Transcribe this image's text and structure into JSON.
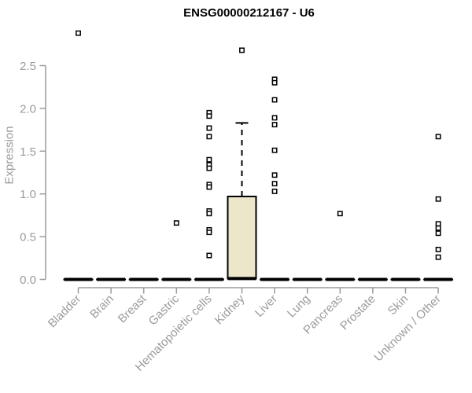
{
  "chart_data": {
    "type": "box",
    "title": "ENSG00000212167 - U6",
    "ylabel": "Expression",
    "xlabel": "",
    "grid": false,
    "ylim": [
      0,
      2.9
    ],
    "yticks": [
      0.0,
      0.5,
      1.0,
      1.5,
      2.0,
      2.5
    ],
    "ytick_labels": [
      "0.0",
      "0.5",
      "1.0",
      "1.5",
      "2.0",
      "2.5"
    ],
    "categories": [
      "Bladder",
      "Brain",
      "Breast",
      "Gastric",
      "Hematopoietic cells",
      "Kidney",
      "Liver",
      "Lung",
      "Pancreas",
      "Prostate",
      "Skin",
      "Unknown / Other"
    ],
    "colors": {
      "box_fill": "#ece7cb",
      "box_stroke": "#000000",
      "median": "#000000",
      "whisker": "#000000",
      "outlier": "#000000",
      "axis": "#9b9b9b",
      "tick_text": "#9b9b9b",
      "title_text": "#000000"
    },
    "series": [
      {
        "name": "Bladder",
        "box": {
          "q1": 0,
          "median": 0,
          "q3": 0,
          "whisker_low": 0,
          "whisker_high": 0
        },
        "outliers": [
          2.88
        ]
      },
      {
        "name": "Brain",
        "box": {
          "q1": 0,
          "median": 0,
          "q3": 0,
          "whisker_low": 0,
          "whisker_high": 0
        },
        "outliers": []
      },
      {
        "name": "Breast",
        "box": {
          "q1": 0,
          "median": 0,
          "q3": 0,
          "whisker_low": 0,
          "whisker_high": 0
        },
        "outliers": []
      },
      {
        "name": "Gastric",
        "box": {
          "q1": 0,
          "median": 0,
          "q3": 0,
          "whisker_low": 0,
          "whisker_high": 0
        },
        "outliers": [
          0.66
        ]
      },
      {
        "name": "Hematopoietic cells",
        "box": {
          "q1": 0,
          "median": 0,
          "q3": 0,
          "whisker_low": 0,
          "whisker_high": 0
        },
        "outliers": [
          1.95,
          1.91,
          1.77,
          1.67,
          1.4,
          1.34,
          1.3,
          1.11,
          1.08,
          0.8,
          0.77,
          0.58,
          0.55,
          0.28
        ]
      },
      {
        "name": "Kidney",
        "box": {
          "q1": 0.01,
          "median": 0.01,
          "q3": 0.97,
          "whisker_low": 0.01,
          "whisker_high": 1.83
        },
        "outliers": [
          2.68
        ]
      },
      {
        "name": "Liver",
        "box": {
          "q1": 0,
          "median": 0,
          "q3": 0,
          "whisker_low": 0,
          "whisker_high": 0
        },
        "outliers": [
          2.34,
          2.3,
          2.1,
          1.89,
          1.81,
          1.51,
          1.22,
          1.12,
          1.03
        ]
      },
      {
        "name": "Lung",
        "box": {
          "q1": 0,
          "median": 0,
          "q3": 0,
          "whisker_low": 0,
          "whisker_high": 0
        },
        "outliers": []
      },
      {
        "name": "Pancreas",
        "box": {
          "q1": 0,
          "median": 0,
          "q3": 0,
          "whisker_low": 0,
          "whisker_high": 0
        },
        "outliers": [
          0.77
        ]
      },
      {
        "name": "Prostate",
        "box": {
          "q1": 0,
          "median": 0,
          "q3": 0,
          "whisker_low": 0,
          "whisker_high": 0
        },
        "outliers": []
      },
      {
        "name": "Skin",
        "box": {
          "q1": 0,
          "median": 0,
          "q3": 0,
          "whisker_low": 0,
          "whisker_high": 0
        },
        "outliers": []
      },
      {
        "name": "Unknown / Other",
        "box": {
          "q1": 0,
          "median": 0,
          "q3": 0,
          "whisker_low": 0,
          "whisker_high": 0
        },
        "outliers": [
          1.67,
          0.94,
          0.65,
          0.6,
          0.54,
          0.35,
          0.26
        ]
      }
    ]
  }
}
